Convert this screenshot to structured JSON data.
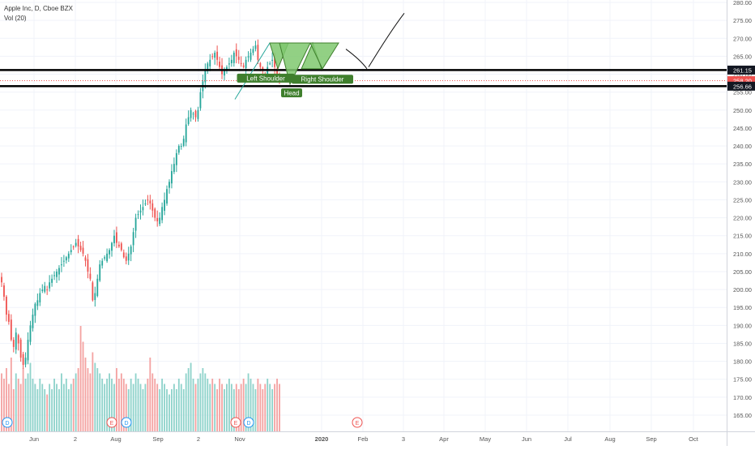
{
  "legend": {
    "symbol": "Apple Inc, D, Cboe BZX",
    "volume": "Vol (20)"
  },
  "colors": {
    "up": "#26a69a",
    "down": "#ef5350",
    "vol_up": "#8fd3cb",
    "vol_down": "#f4a3a2",
    "pattern_fill": "#7fc86f",
    "label_bg": "#3f7f2d",
    "last_price": "#ef5350",
    "level_line": "#000000"
  },
  "chart_data": {
    "type": "candlestick",
    "title": "Apple Inc, D, Cboe BZX",
    "x_axis_labels": [
      "Jun",
      "2",
      "Aug",
      "Sep",
      "2",
      "Nov",
      "2020",
      "Feb",
      "3",
      "Apr",
      "May",
      "Jun",
      "Jul",
      "Aug",
      "Sep",
      "Oct"
    ],
    "y_ticks": [
      165,
      170,
      175,
      180,
      185,
      190,
      195,
      200,
      205,
      210,
      215,
      220,
      225,
      230,
      235,
      240,
      245,
      250,
      255,
      260,
      265,
      270,
      275,
      280
    ],
    "ylim": [
      163,
      282
    ],
    "price_labels": [
      {
        "text": "261.15",
        "value": 261.15,
        "style": "black"
      },
      {
        "text": "258.20",
        "value": 258.2,
        "style": "red"
      },
      {
        "text": "256.66",
        "value": 256.66,
        "style": "black"
      }
    ],
    "horizontal_levels": [
      261.15,
      256.66
    ],
    "last_price": 258.2,
    "annotations": [
      "Left Shoulder",
      "Head",
      "Right Shoulder"
    ],
    "event_markers": [
      {
        "letter": "D",
        "pos": "left-1"
      },
      {
        "letter": "E",
        "pos": "aug-e"
      },
      {
        "letter": "D",
        "pos": "aug-d"
      },
      {
        "letter": "E",
        "pos": "nov-e"
      },
      {
        "letter": "D",
        "pos": "nov-d"
      },
      {
        "letter": "E",
        "pos": "feb-e"
      }
    ],
    "close_path": [
      202,
      198,
      193,
      191,
      186,
      184,
      188,
      185,
      181,
      179,
      181,
      186,
      190,
      193,
      196,
      197,
      199,
      200,
      201,
      200,
      202,
      203,
      204,
      205,
      206,
      207,
      208,
      209,
      210,
      211,
      212,
      213,
      212,
      211,
      210,
      208,
      205,
      203,
      197,
      199,
      203,
      207,
      208,
      209,
      210,
      211,
      213,
      215,
      213,
      212,
      211,
      209,
      208,
      210,
      212,
      216,
      220,
      221,
      222,
      223,
      224,
      225,
      224,
      222,
      220,
      219,
      220,
      223,
      225,
      228,
      230,
      233,
      235,
      238,
      240,
      240,
      242,
      246,
      248,
      250,
      249,
      248,
      250,
      255,
      258,
      261,
      263,
      264,
      265,
      266,
      264,
      262,
      260,
      261,
      262,
      263,
      264,
      266,
      265,
      264,
      263,
      262,
      264,
      265,
      266,
      267,
      268,
      264,
      262,
      261,
      260,
      262,
      263,
      264,
      262,
      260,
      258.2
    ],
    "volume_rel": [
      0.55,
      0.5,
      0.6,
      0.45,
      0.7,
      0.4,
      0.55,
      0.5,
      0.45,
      0.6,
      0.5,
      0.55,
      0.65,
      0.5,
      0.45,
      0.4,
      0.5,
      0.45,
      0.4,
      0.35,
      0.45,
      0.4,
      0.5,
      0.45,
      0.4,
      0.55,
      0.45,
      0.5,
      0.4,
      0.45,
      0.5,
      0.55,
      0.6,
      1.0,
      0.85,
      0.7,
      0.6,
      0.55,
      0.75,
      0.65,
      0.6,
      0.55,
      0.5,
      0.45,
      0.5,
      0.55,
      0.5,
      0.45,
      0.6,
      0.5,
      0.55,
      0.5,
      0.45,
      0.4,
      0.5,
      0.45,
      0.55,
      0.5,
      0.45,
      0.4,
      0.45,
      0.5,
      0.7,
      0.55,
      0.5,
      0.45,
      0.4,
      0.5,
      0.45,
      0.4,
      0.35,
      0.4,
      0.45,
      0.4,
      0.5,
      0.45,
      0.4,
      0.55,
      0.6,
      0.65,
      0.5,
      0.45,
      0.5,
      0.55,
      0.6,
      0.55,
      0.5,
      0.45,
      0.5,
      0.45,
      0.4,
      0.5,
      0.45,
      0.4,
      0.45,
      0.5,
      0.45,
      0.4,
      0.45,
      0.4,
      0.45,
      0.5,
      0.45,
      0.55,
      0.5,
      0.45,
      0.4,
      0.5,
      0.45,
      0.4,
      0.45,
      0.5,
      0.45,
      0.4,
      0.45,
      0.5,
      0.45
    ]
  }
}
